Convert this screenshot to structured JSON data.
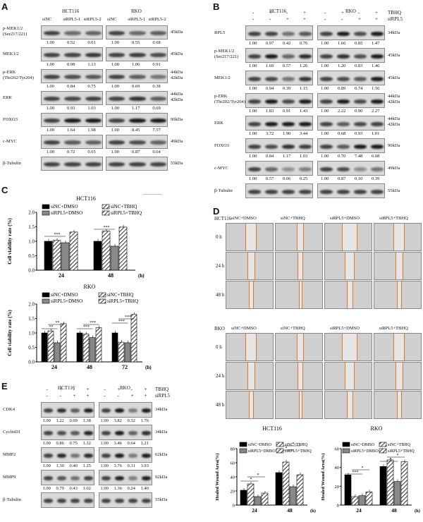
{
  "panel_labels": [
    "A",
    "B",
    "C",
    "D",
    "E"
  ],
  "panelA": {
    "cell_lines": [
      "HCT116",
      "RKO"
    ],
    "lanes": [
      "siNC",
      "siRPL5-1",
      "siRPL5-2",
      "siNC",
      "siRPL5-1",
      "siRPL5-2"
    ],
    "rows": [
      {
        "name": "p-MEK1/2\n(Ser217/221)",
        "mw": "45kDa",
        "vals": [
          "1.00",
          "0.52",
          "0.61",
          "1.00",
          "0.55",
          "0.68"
        ]
      },
      {
        "name": "MEK1/2",
        "mw": "45kDa",
        "vals": [
          "1.00",
          "0.98",
          "1.13",
          "1.00",
          "1.06",
          "0.91"
        ]
      },
      {
        "name": "p-ERK\n(Thr202/Tyr204)",
        "mw": "44kDa\n42kDa",
        "vals": [
          "1.00",
          "0.84",
          "0.75",
          "1.00",
          "0.69",
          "0.38"
        ]
      },
      {
        "name": "ERK",
        "mw": "44kDa\n42kDa",
        "vals": [
          "1.00",
          "0.93",
          "1.03",
          "1.00",
          "1.17",
          "0.69"
        ]
      },
      {
        "name": "FOXO3",
        "mw": "90kDa",
        "vals": [
          "1.00",
          "1.64",
          "1.98",
          "1.00",
          "8.45",
          "7.57"
        ]
      },
      {
        "name": "c-MYC",
        "mw": "49kDa",
        "vals": [
          "1.00",
          "0.72",
          "0.65",
          "1.00",
          "0.87",
          "0.64"
        ]
      },
      {
        "name": "β-Tubulin",
        "mw": "55kDa",
        "vals": []
      }
    ]
  },
  "panelB": {
    "cell_lines": [
      "HCT116",
      "RKO"
    ],
    "treat_labels": [
      "TBHQ",
      "siRPL5"
    ],
    "tbhq": [
      "-",
      "+",
      "-",
      "+",
      "-",
      "+",
      "-",
      "+"
    ],
    "sirpl5": [
      "-",
      "-",
      "+",
      "+",
      "-",
      "-",
      "+",
      "+"
    ],
    "rows": [
      {
        "name": "RPL5",
        "mw": "34kDa",
        "vals": [
          "1.00",
          "0.97",
          "0.42",
          "0.76",
          "1.00",
          "1.66",
          "0.85",
          "1.47"
        ]
      },
      {
        "name": "p-MEK1/2\n(Ser217/221)",
        "mw": "45kDa",
        "vals": [
          "1.00",
          "1.69",
          "0.57",
          "1.26",
          "1.00",
          "1.20",
          "0.83",
          "1.46"
        ]
      },
      {
        "name": "MEK1/2",
        "mw": "45kDa",
        "vals": [
          "1.00",
          "0.94",
          "0.39",
          "1.15",
          "1.00",
          "0.89",
          "0.74",
          "1.56"
        ]
      },
      {
        "name": "p-ERK\n(Thr202/Tyr204)",
        "mw": "44kDa\n42kDa",
        "vals": [
          "1.00",
          "1.83",
          "0.91",
          "1.43",
          "1.00",
          "2.22",
          "0.90",
          "2.27"
        ]
      },
      {
        "name": "ERK",
        "mw": "44kDa\n42kDa",
        "vals": [
          "1.00",
          "3.72",
          "1.90",
          "3.44",
          "1.00",
          "0.68",
          "0.93",
          "1.01"
        ]
      },
      {
        "name": "FOXO3",
        "mw": "90kDa",
        "vals": [
          "1.00",
          "0.84",
          "1.17",
          "1.03",
          "1.00",
          "0.70",
          "7.48",
          "6.08"
        ]
      },
      {
        "name": "c-MYC",
        "mw": "49kDa",
        "vals": [
          "1.00",
          "0.57",
          "0.06",
          "0.25",
          "1.00",
          "0.87",
          "0.10",
          "0.39"
        ]
      },
      {
        "name": "β-Tubulin",
        "mw": "55kDa",
        "vals": []
      }
    ]
  },
  "panelC": {
    "legend": [
      "siNC+DMSO",
      "siNC+TBHQ",
      "siRPL5+DMSO",
      "siRPL5+TBHQ"
    ],
    "ylabel": "Cell viability rate (%)",
    "xunit": "(h)",
    "sig_top": [
      "***",
      "***",
      "***"
    ],
    "sig_bottom": [
      "**",
      "**",
      "***",
      "***",
      "***",
      "***"
    ]
  },
  "panelD": {
    "conditions": [
      "siNC+DMSO",
      "siNC+TBHQ",
      "siRPL5+DMSO",
      "siRPL5+TBHQ"
    ],
    "hct_label": "HCT116",
    "rko_label": "RKO",
    "times": [
      "0 h",
      "24 h",
      "48 h"
    ]
  },
  "panelD_charts": {
    "ylabel": "Healed Wound Area(%)",
    "xunit": "(h)",
    "sig_left": [
      "*",
      "*",
      "*",
      "*"
    ],
    "sig_right": [
      "***",
      "*",
      "*",
      "*"
    ]
  },
  "panelE": {
    "cell_lines": [
      "HCT116",
      "RKO"
    ],
    "treat_labels": [
      "TBHQ",
      "siRPL5"
    ],
    "tbhq": [
      "-",
      "+",
      "-",
      "+",
      "-",
      "+",
      "-",
      "+"
    ],
    "sirpl5": [
      "-",
      "-",
      "+",
      "+",
      "-",
      "-",
      "+",
      "+"
    ],
    "rows": [
      {
        "name": "CDK4",
        "mw": "34kDa",
        "vals": [
          "1.00",
          "1.22",
          "0.69",
          "1.38",
          "1.00",
          "3.82",
          "0.32",
          "1.76"
        ]
      },
      {
        "name": "CyclinD1",
        "mw": "34kDa",
        "vals": [
          "1.00",
          "0.86",
          "0.75",
          "1.32",
          "1.00",
          "3.46",
          "0.64",
          "1.21"
        ]
      },
      {
        "name": "MMP2",
        "mw": "62kDa",
        "vals": [
          "1.00",
          "1.30",
          "0.40",
          "1.25",
          "1.00",
          "3.76",
          "0.31",
          "3.93"
        ]
      },
      {
        "name": "MMP9",
        "mw": "92kDa",
        "vals": [
          "1.00",
          "0.79",
          "0.43",
          "1.02",
          "1.00",
          "1.36",
          "0.24",
          "1.40"
        ]
      },
      {
        "name": "β-Tubulin",
        "mw": "55kDa",
        "vals": []
      }
    ]
  },
  "chart_data": [
    {
      "type": "bar",
      "title": "HCT116",
      "ylabel": "Cell viability rate (%)",
      "categories": [
        "24",
        "48"
      ],
      "ylim": [
        0,
        2.0
      ],
      "yticks": [
        "0.0",
        "0.5",
        "1.0",
        "1.5",
        "2.0"
      ],
      "series": [
        {
          "name": "siNC+DMSO",
          "values": [
            1.0,
            1.0
          ]
        },
        {
          "name": "siNC+TBHQ",
          "values": [
            1.03,
            1.35
          ]
        },
        {
          "name": "siRPL5+DMSO",
          "values": [
            0.95,
            0.83
          ]
        },
        {
          "name": "siRPL5+TBHQ",
          "values": [
            1.32,
            1.49
          ]
        }
      ]
    },
    {
      "type": "bar",
      "title": "RKO",
      "ylabel": "Cell viability rate (%)",
      "categories": [
        "24",
        "48",
        "72"
      ],
      "ylim": [
        0,
        2.0
      ],
      "yticks": [
        "0.0",
        "0.5",
        "1.0",
        "1.5",
        "2.0"
      ],
      "series": [
        {
          "name": "siNC+DMSO",
          "values": [
            1.0,
            1.0,
            1.0
          ]
        },
        {
          "name": "siNC+TBHQ",
          "values": [
            1.07,
            0.96,
            0.68
          ]
        },
        {
          "name": "siRPL5+DMSO",
          "values": [
            0.66,
            0.84,
            0.66
          ]
        },
        {
          "name": "siRPL5+TBHQ",
          "values": [
            1.32,
            1.18,
            1.64
          ]
        }
      ]
    },
    {
      "type": "bar",
      "title": "HCT116",
      "ylabel": "Healed Wound Area(%)",
      "categories": [
        "24",
        "48"
      ],
      "ylim": [
        0,
        80
      ],
      "yticks": [
        "0",
        "20",
        "40",
        "60",
        "80"
      ],
      "series": [
        {
          "name": "siNC+DMSO",
          "values": [
            21,
            46
          ]
        },
        {
          "name": "siNC+TBHQ",
          "values": [
            30,
            61
          ]
        },
        {
          "name": "siRPL5+DMSO",
          "values": [
            12,
            26
          ]
        },
        {
          "name": "siRPL5+TBHQ",
          "values": [
            17,
            43
          ]
        }
      ]
    },
    {
      "type": "bar",
      "title": "RKO",
      "ylabel": "Healed Wound Area(%)",
      "categories": [
        "24",
        "48"
      ],
      "ylim": [
        0,
        60
      ],
      "yticks": [
        "0",
        "20",
        "40",
        "60"
      ],
      "series": [
        {
          "name": "siNC+DMSO",
          "values": [
            32,
            41
          ]
        },
        {
          "name": "siNC+TBHQ",
          "values": [
            9,
            48
          ]
        },
        {
          "name": "siRPL5+DMSO",
          "values": [
            10,
            25
          ]
        },
        {
          "name": "siRPL5+TBHQ",
          "values": [
            14,
            46
          ]
        }
      ]
    }
  ]
}
